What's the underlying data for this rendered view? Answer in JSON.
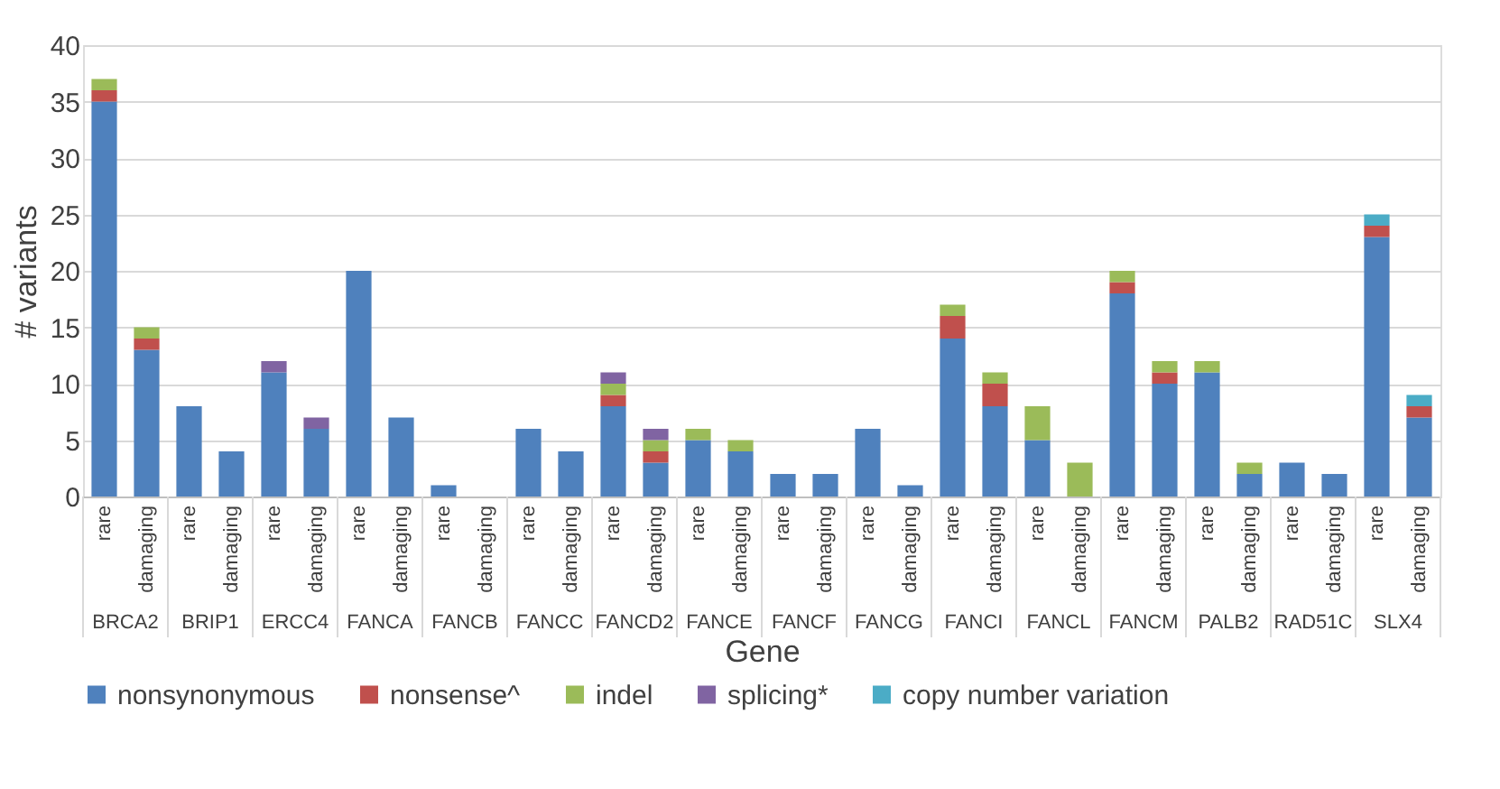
{
  "chart_data": {
    "type": "bar",
    "stacked": true,
    "xlabel": "Gene",
    "ylabel": "# variants",
    "categories": [
      "rare",
      "damaging",
      "rare",
      "damaging",
      "rare",
      "damaging",
      "rare",
      "damaging",
      "rare",
      "damaging",
      "rare",
      "damaging",
      "rare",
      "damaging",
      "rare",
      "damaging",
      "rare",
      "damaging",
      "rare",
      "damaging",
      "rare",
      "damaging",
      "rare",
      "damaging",
      "rare",
      "damaging",
      "rare",
      "damaging",
      "rare",
      "damaging",
      "rare",
      "damaging"
    ],
    "annotations": [
      "BRCA2",
      "BRIP1",
      "ERCC4",
      "FANCA",
      "FANCB",
      "FANCC",
      "FANCD2",
      "FANCE",
      "FANCF",
      "FANCG",
      "FANCI",
      "FANCL",
      "FANCM",
      "PALB2",
      "RAD51C",
      "SLX4"
    ],
    "series": [
      {
        "name": "nonsynonymous",
        "color": "#4f81bd",
        "values": [
          35,
          13,
          8,
          4,
          11,
          6,
          20,
          7,
          1,
          0,
          6,
          4,
          8,
          3,
          5,
          4,
          2,
          2,
          6,
          1,
          14,
          8,
          5,
          0,
          18,
          10,
          11,
          2,
          3,
          2,
          23,
          7
        ]
      },
      {
        "name": "nonsense^",
        "color": "#c0504d",
        "values": [
          1,
          1,
          0,
          0,
          0,
          0,
          0,
          0,
          0,
          0,
          0,
          0,
          1,
          1,
          0,
          0,
          0,
          0,
          0,
          0,
          2,
          2,
          0,
          0,
          1,
          1,
          0,
          0,
          0,
          0,
          1,
          1
        ]
      },
      {
        "name": "indel",
        "color": "#9bbb59",
        "values": [
          1,
          1,
          0,
          0,
          0,
          0,
          0,
          0,
          0,
          0,
          0,
          0,
          1,
          1,
          1,
          1,
          0,
          0,
          0,
          0,
          1,
          1,
          3,
          3,
          1,
          1,
          1,
          1,
          0,
          0,
          0,
          0
        ]
      },
      {
        "name": "splicing*",
        "color": "#8064a2",
        "values": [
          0,
          0,
          0,
          0,
          1,
          1,
          0,
          0,
          0,
          0,
          0,
          0,
          1,
          1,
          0,
          0,
          0,
          0,
          0,
          0,
          0,
          0,
          0,
          0,
          0,
          0,
          0,
          0,
          0,
          0,
          0,
          0
        ]
      },
      {
        "name": "copy number variation",
        "color": "#4bacc6",
        "values": [
          0,
          0,
          0,
          0,
          0,
          0,
          0,
          0,
          0,
          0,
          0,
          0,
          0,
          0,
          0,
          0,
          0,
          0,
          0,
          0,
          0,
          0,
          0,
          0,
          0,
          0,
          0,
          0,
          0,
          0,
          1,
          1
        ]
      }
    ],
    "ylim": [
      0,
      40
    ],
    "yticks": [
      0,
      5,
      10,
      15,
      20,
      25,
      30,
      35,
      40
    ],
    "grid": "y",
    "legend": "bottom"
  }
}
